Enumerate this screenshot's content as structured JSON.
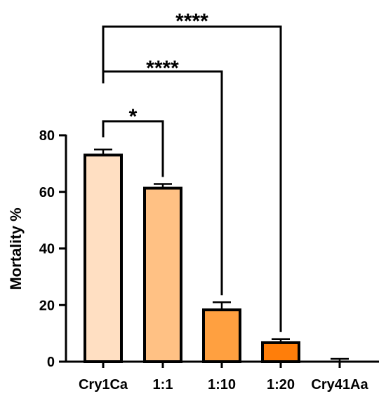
{
  "chart_data": {
    "type": "bar",
    "categories": [
      "Cry1Ca",
      "1:1",
      "1:10",
      "1:20",
      "Cry41Aa"
    ],
    "values": [
      73,
      61.3,
      18.3,
      6.7,
      0
    ],
    "errors": [
      2,
      1.5,
      2.7,
      1.3,
      1
    ],
    "colors": [
      "#FFDFC2",
      "#FFC184",
      "#FFA040",
      "#FF7E0A",
      "#FFFFFF"
    ],
    "title": "",
    "xlabel": "",
    "ylabel": "Mortality %",
    "ylim": [
      0,
      80
    ],
    "yticks": [
      0,
      20,
      40,
      60,
      80
    ],
    "ytick_labels": [
      "0",
      "20",
      "40",
      "60",
      "80"
    ],
    "grid": false,
    "significance": [
      {
        "from": "Cry1Ca",
        "to": "1:1",
        "label": "*"
      },
      {
        "from": "Cry1Ca",
        "to": "1:10",
        "label": "****"
      },
      {
        "from": "Cry1Ca",
        "to": "1:20",
        "label": "****"
      }
    ]
  }
}
